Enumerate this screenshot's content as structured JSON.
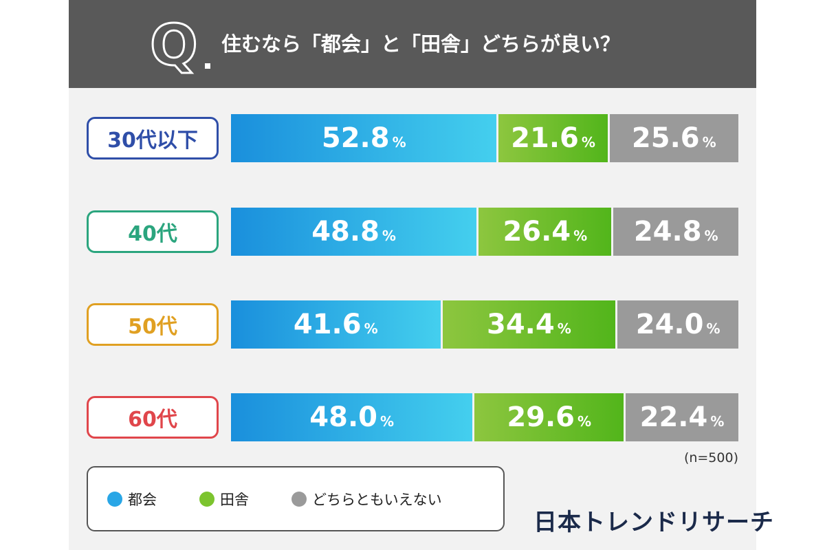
{
  "header": {
    "q_letter": "Q",
    "question": "住むなら「都会」と「田舎」どちらが良い？"
  },
  "chart_data": {
    "type": "bar",
    "orientation": "horizontal-stacked-100",
    "categories": [
      "30代以下",
      "40代",
      "50代",
      "60代"
    ],
    "category_colors": [
      "#2f4ea8",
      "#2ba57e",
      "#e0a022",
      "#e0464b"
    ],
    "series": [
      {
        "name": "都会",
        "values": [
          52.8,
          48.8,
          41.6,
          48.0
        ],
        "labels": [
          "52.8",
          "48.8",
          "41.6",
          "48.0"
        ],
        "color_from": "#1a8fdc",
        "color_to": "#44cfee"
      },
      {
        "name": "田舎",
        "values": [
          21.6,
          26.4,
          34.4,
          29.6
        ],
        "labels": [
          "21.6",
          "26.4",
          "34.4",
          "29.6"
        ],
        "color_from": "#8dc63f",
        "color_to": "#52b51b"
      },
      {
        "name": "どちらともいえない",
        "values": [
          25.6,
          24.8,
          24.0,
          22.4
        ],
        "labels": [
          "25.6",
          "24.8",
          "24.0",
          "22.4"
        ],
        "color_from": "#9a9a9a",
        "color_to": "#9a9a9a"
      }
    ],
    "unit": "%",
    "note": "(n=500)"
  },
  "legend": {
    "items": [
      {
        "label": "都会",
        "color": "#29a6e6"
      },
      {
        "label": "田舎",
        "color": "#7cc42e"
      },
      {
        "label": "どちらともいえない",
        "color": "#9a9a9a"
      }
    ]
  },
  "brand": "日本トレンドリサーチ"
}
